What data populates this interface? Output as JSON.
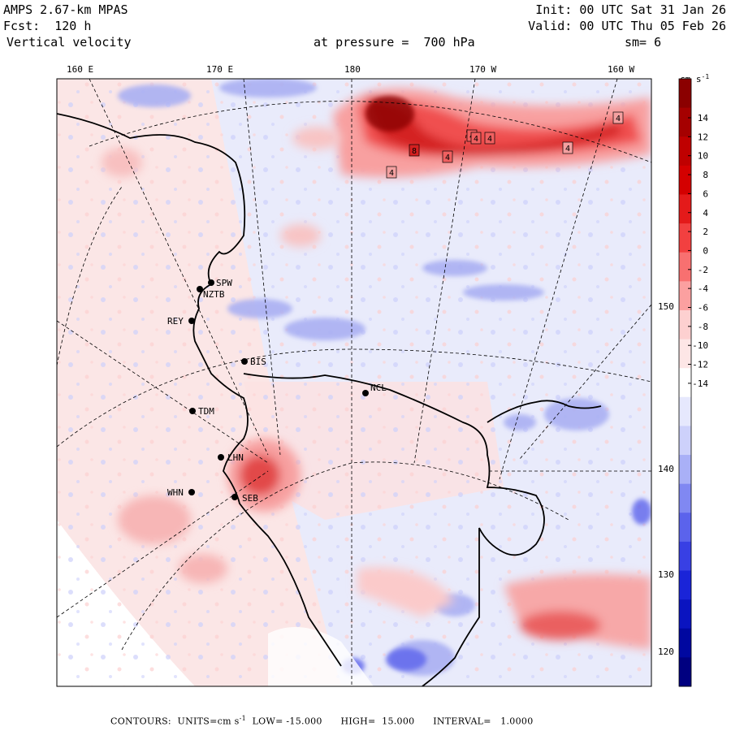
{
  "header": {
    "model": "AMPS 2.67-km MPAS",
    "forecast": "Fcst:  120 h",
    "variable": "Vertical velocity",
    "init": "Init: 00 UTC Sat 31 Jan 26",
    "valid": "Valid: 00 UTC Thu 05 Feb 26",
    "pressure": "at pressure =  700 hPa",
    "smoothing": "sm= 6"
  },
  "longitude_labels": [
    "160 E",
    "170 E",
    "180",
    "170 W",
    "160 W"
  ],
  "latitude_labels": [
    "150 W",
    "140 W",
    "130 W",
    "120 W"
  ],
  "stations": [
    {
      "code": "SPW"
    },
    {
      "code": "NZTB"
    },
    {
      "code": "REY"
    },
    {
      "code": "BIS"
    },
    {
      "code": "NCL"
    },
    {
      "code": "TDM"
    },
    {
      "code": "LHN"
    },
    {
      "code": "WHN"
    },
    {
      "code": "SEB"
    }
  ],
  "contour_labels": [
    "4",
    "4",
    "4",
    "4",
    "4",
    "4",
    "4",
    "8"
  ],
  "colorbar": {
    "units": "cm s",
    "units_exp": "-1",
    "ticks": [
      "14",
      "12",
      "10",
      "8",
      "6",
      "4",
      "2",
      "0",
      "-2",
      "-4",
      "-6",
      "-8",
      "-10",
      "-12",
      "-14"
    ],
    "colors": [
      "#8b0000",
      "#a50000",
      "#bf0000",
      "#d40000",
      "#e41a1a",
      "#f24040",
      "#f87070",
      "#fba0a0",
      "#fdd0d0",
      "#fde6e6",
      "#ffffff",
      "#e6e8fd",
      "#cdd1fb",
      "#a9b0f7",
      "#8088f2",
      "#5b63ec",
      "#3840e4",
      "#1a24d8",
      "#0a14c0",
      "#0008a0",
      "#000080"
    ]
  },
  "footer": {
    "text": "CONTOURS:  UNITS=cm s",
    "units_exp": "-1",
    "low": "LOW= -15.000",
    "high": "HIGH=  15.000",
    "interval": "INTERVAL=   1.0000"
  }
}
